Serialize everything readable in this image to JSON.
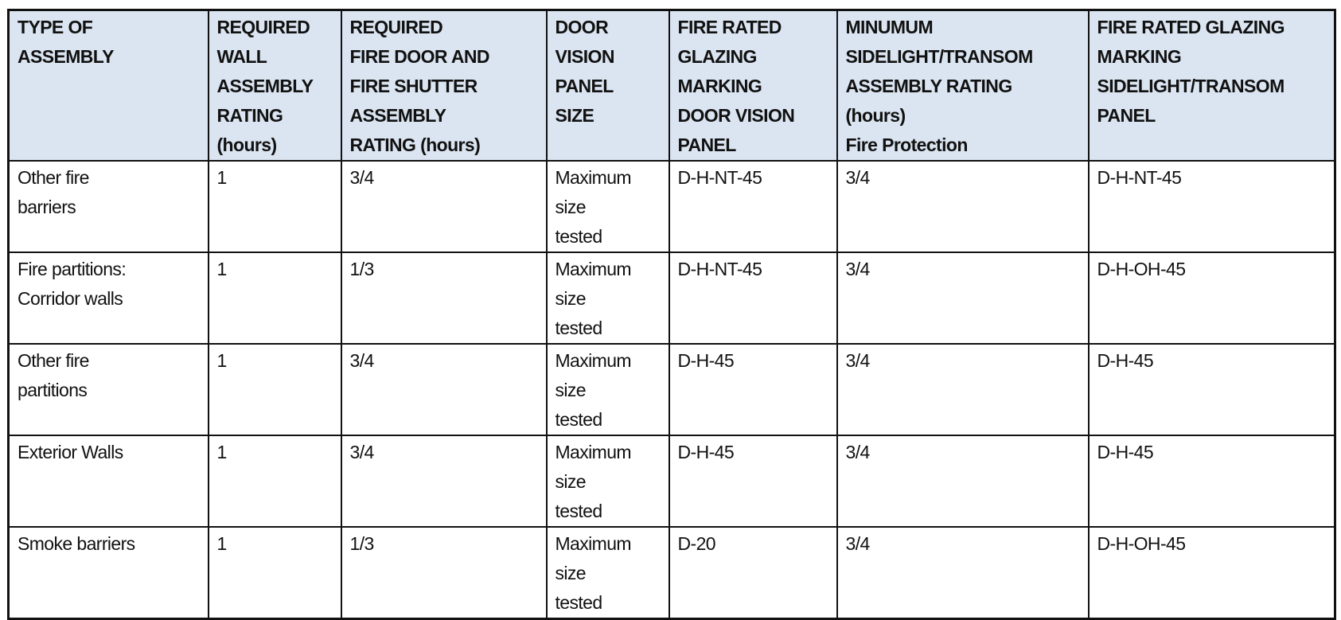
{
  "table": {
    "headers": [
      [
        "TYPE OF",
        "ASSEMBLY"
      ],
      [
        "REQUIRED",
        "WALL",
        "ASSEMBLY",
        "RATING",
        "(hours)"
      ],
      [
        "REQUIRED",
        "FIRE DOOR AND",
        "FIRE SHUTTER",
        "ASSEMBLY",
        "RATING (hours)"
      ],
      [
        "DOOR",
        "VISION",
        "PANEL",
        "SIZE"
      ],
      [
        "FIRE RATED",
        "GLAZING",
        "MARKING",
        "DOOR VISION",
        "PANEL"
      ],
      [
        "MINUMUM",
        "SIDELIGHT/TRANSOM",
        "ASSEMBLY RATING",
        "(hours)",
        "Fire Protection"
      ],
      [
        "FIRE RATED GLAZING",
        "MARKING",
        "SIDELIGHT/TRANSOM",
        "PANEL"
      ]
    ],
    "header_bg": "#dbe5f1",
    "rows": [
      [
        [
          "Other fire",
          "barriers"
        ],
        "1",
        "3/4",
        [
          "Maximum",
          "size",
          "tested"
        ],
        "D-H-NT-45",
        "3/4",
        "D-H-NT-45"
      ],
      [
        [
          "Fire partitions:",
          "Corridor walls"
        ],
        "1",
        "1/3",
        [
          "Maximum",
          "size",
          "tested"
        ],
        "D-H-NT-45",
        "3/4",
        "D-H-OH-45"
      ],
      [
        [
          "Other fire",
          "partitions"
        ],
        "1",
        "3/4",
        [
          "Maximum",
          "size",
          "tested"
        ],
        "D-H-45",
        "3/4",
        "D-H-45"
      ],
      [
        [
          "Exterior Walls"
        ],
        "1",
        "3/4",
        [
          "Maximum",
          "size",
          "tested"
        ],
        "D-H-45",
        "3/4",
        "D-H-45"
      ],
      [
        [
          "Smoke barriers"
        ],
        "1",
        "1/3",
        [
          "Maximum",
          "size",
          "tested"
        ],
        "D-20",
        "3/4",
        "D-H-OH-45"
      ]
    ]
  }
}
